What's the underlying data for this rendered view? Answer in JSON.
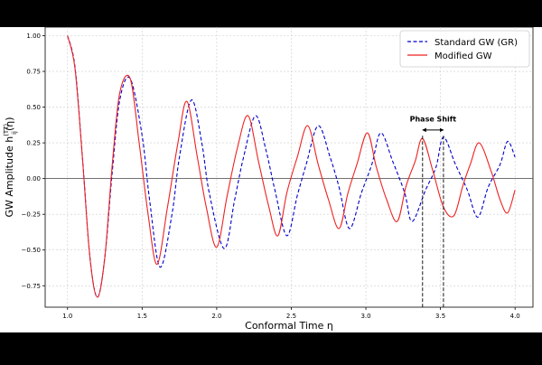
{
  "chart_data": {
    "type": "line",
    "xlabel": "Conformal Time η",
    "ylabel": "GW Amplitude h_ij^(TT)(η)",
    "xlim": [
      0.85,
      4.12
    ],
    "ylim": [
      -0.9,
      1.06
    ],
    "x_ticks": [
      1.0,
      1.5,
      2.0,
      2.5,
      3.0,
      3.5,
      4.0
    ],
    "x_tick_labels": [
      "1.0",
      "1.5",
      "2.0",
      "2.5",
      "3.0",
      "3.5",
      "4.0"
    ],
    "y_ticks": [
      -0.75,
      -0.5,
      -0.25,
      0.0,
      0.25,
      0.5,
      0.75,
      1.0
    ],
    "y_tick_labels": [
      "−0.75",
      "−0.50",
      "−0.25",
      "0.00",
      "0.25",
      "0.50",
      "0.75",
      "1.00"
    ],
    "grid": true,
    "legend_position": "top-right",
    "zero_line": 0.0,
    "series": [
      {
        "name": "Standard GW (GR)",
        "color": "#0000cc",
        "style": "dashed",
        "x": [
          1.0,
          1.05,
          1.1,
          1.15,
          1.2,
          1.25,
          1.3,
          1.35,
          1.42,
          1.5,
          1.55,
          1.62,
          1.7,
          1.75,
          1.83,
          1.9,
          1.95,
          2.05,
          2.12,
          2.18,
          2.26,
          2.33,
          2.39,
          2.47,
          2.54,
          2.6,
          2.68,
          2.76,
          2.82,
          2.89,
          2.97,
          3.04,
          3.1,
          3.18,
          3.26,
          3.31,
          3.4,
          3.47,
          3.52,
          3.6,
          3.68,
          3.75,
          3.82,
          3.9,
          3.95,
          4.0
        ],
        "y": [
          1.0,
          0.78,
          0.15,
          -0.55,
          -0.83,
          -0.55,
          0.05,
          0.55,
          0.7,
          0.3,
          -0.15,
          -0.62,
          -0.25,
          0.15,
          0.55,
          0.25,
          -0.1,
          -0.49,
          -0.15,
          0.15,
          0.44,
          0.2,
          -0.08,
          -0.4,
          -0.12,
          0.1,
          0.37,
          0.15,
          -0.06,
          -0.35,
          -0.1,
          0.1,
          0.32,
          0.12,
          -0.1,
          -0.3,
          -0.08,
          0.08,
          0.29,
          0.1,
          -0.08,
          -0.27,
          -0.06,
          0.1,
          0.26,
          0.15
        ]
      },
      {
        "name": "Modified GW",
        "color": "#ee2222",
        "style": "solid",
        "x": [
          1.0,
          1.05,
          1.1,
          1.15,
          1.2,
          1.25,
          1.3,
          1.35,
          1.42,
          1.48,
          1.54,
          1.6,
          1.67,
          1.74,
          1.8,
          1.87,
          1.93,
          2.0,
          2.07,
          2.14,
          2.21,
          2.28,
          2.35,
          2.41,
          2.47,
          2.54,
          2.61,
          2.68,
          2.75,
          2.82,
          2.88,
          2.94,
          3.01,
          3.07,
          3.14,
          3.21,
          3.27,
          3.33,
          3.38,
          3.45,
          3.52,
          3.59,
          3.65,
          3.7,
          3.76,
          3.84,
          3.9,
          3.95,
          4.0
        ],
        "y": [
          1.0,
          0.77,
          0.14,
          -0.55,
          -0.83,
          -0.55,
          0.1,
          0.6,
          0.7,
          0.25,
          -0.25,
          -0.6,
          -0.2,
          0.25,
          0.54,
          0.15,
          -0.2,
          -0.48,
          -0.12,
          0.22,
          0.44,
          0.12,
          -0.2,
          -0.4,
          -0.1,
          0.15,
          0.37,
          0.1,
          -0.15,
          -0.35,
          -0.1,
          0.1,
          0.32,
          0.08,
          -0.15,
          -0.3,
          -0.05,
          0.12,
          0.28,
          0.05,
          -0.2,
          -0.26,
          -0.05,
          0.1,
          0.25,
          0.05,
          -0.15,
          -0.24,
          -0.08
        ]
      }
    ],
    "annotation": {
      "text": "Phase Shift",
      "x_start": 3.38,
      "x_end": 3.52,
      "y_text": 0.4,
      "y_arrow": 0.34,
      "y_top": 0.3
    }
  }
}
